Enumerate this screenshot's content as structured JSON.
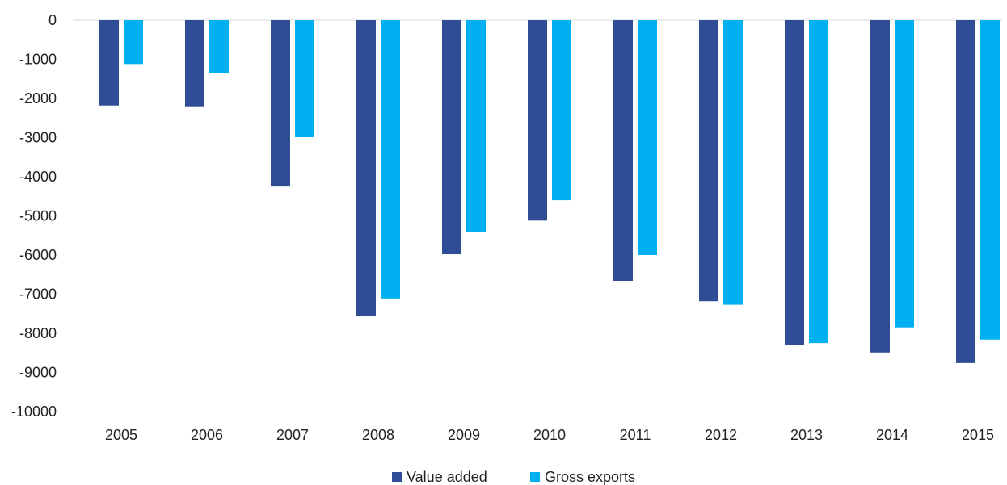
{
  "chart_data": {
    "type": "bar",
    "categories": [
      "2005",
      "2006",
      "2007",
      "2008",
      "2009",
      "2010",
      "2011",
      "2012",
      "2013",
      "2014",
      "2015"
    ],
    "series": [
      {
        "name": "Value added",
        "color": "#2E4D95",
        "values": [
          -2180,
          -2200,
          -4250,
          -7550,
          -5980,
          -5120,
          -6660,
          -7180,
          -8290,
          -8490,
          -8760
        ]
      },
      {
        "name": "Gross exports",
        "color": "#00B0F0",
        "values": [
          -1120,
          -1360,
          -2990,
          -7110,
          -5420,
          -4600,
          -6000,
          -7270,
          -8250,
          -7850,
          -8160
        ]
      }
    ],
    "ylim": [
      -10000,
      0
    ],
    "yticks": [
      0,
      -1000,
      -2000,
      -3000,
      -4000,
      -5000,
      -6000,
      -7000,
      -8000,
      -9000,
      -10000
    ],
    "title": "",
    "xlabel": "",
    "ylabel": "",
    "grid": false,
    "legend": "bottom-center"
  }
}
